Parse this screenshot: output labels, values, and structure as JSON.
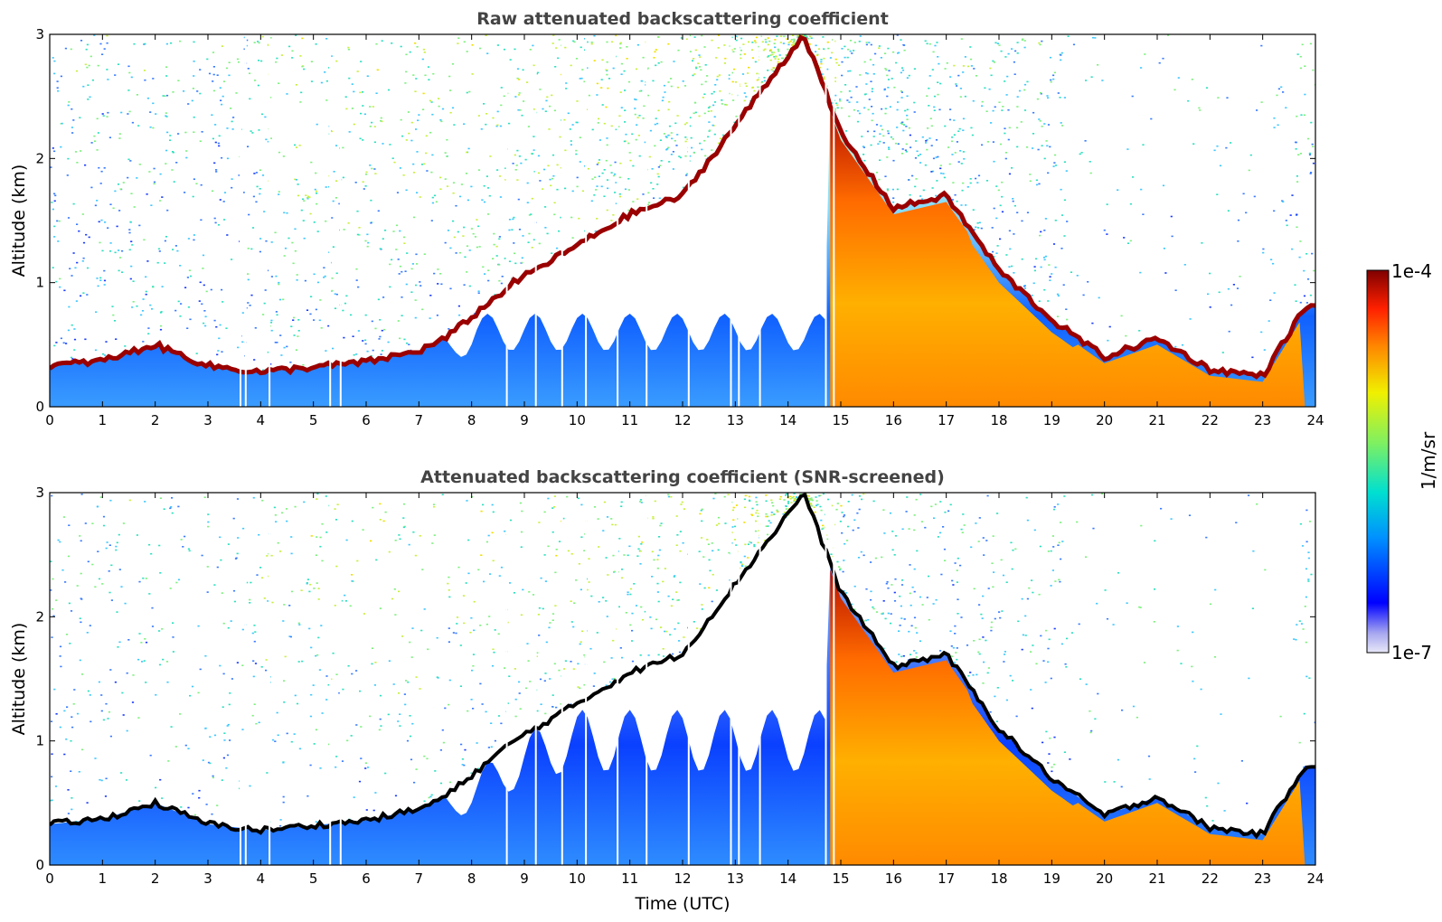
{
  "chart_data": [
    {
      "type": "heatmap",
      "title": "Raw attenuated backscattering coefficient",
      "xlabel": "",
      "ylabel": "Altitude (km)",
      "xlim": [
        0,
        24
      ],
      "ylim": [
        0,
        3
      ],
      "xticks": [
        "0",
        "1",
        "2",
        "3",
        "4",
        "5",
        "6",
        "7",
        "8",
        "9",
        "10",
        "11",
        "12",
        "13",
        "14",
        "15",
        "16",
        "17",
        "18",
        "19",
        "20",
        "21",
        "22",
        "23",
        "24"
      ],
      "yticks": [
        "0",
        "1",
        "2",
        "3"
      ],
      "layer_top_km": {
        "time": [
          0,
          1,
          2,
          3,
          4,
          5,
          6,
          7,
          7.5,
          8.8,
          10,
          11,
          12,
          14.3,
          15,
          16,
          17,
          18,
          19,
          20,
          21,
          22,
          23,
          23.8
        ],
        "altitude": [
          0.33,
          0.37,
          0.5,
          0.33,
          0.28,
          0.32,
          0.36,
          0.45,
          0.55,
          1.0,
          1.3,
          1.55,
          1.7,
          3.0,
          2.2,
          1.6,
          1.7,
          1.1,
          0.7,
          0.4,
          0.55,
          0.3,
          0.25,
          0.8
        ]
      },
      "grid": false
    },
    {
      "type": "heatmap",
      "title": "Attenuated backscattering coefficient (SNR-screened)",
      "xlabel": "Time (UTC)",
      "ylabel": "Altitude (km)",
      "xlim": [
        0,
        24
      ],
      "ylim": [
        0,
        3
      ],
      "xticks": [
        "0",
        "1",
        "2",
        "3",
        "4",
        "5",
        "6",
        "7",
        "8",
        "9",
        "10",
        "11",
        "12",
        "13",
        "14",
        "15",
        "16",
        "17",
        "18",
        "19",
        "20",
        "21",
        "22",
        "23",
        "24"
      ],
      "yticks": [
        "0",
        "1",
        "2",
        "3"
      ],
      "layer_top_km": {
        "time": [
          0,
          1,
          2,
          3,
          4,
          5,
          6,
          7,
          7.5,
          8.8,
          10,
          11,
          12,
          14.3,
          15,
          16,
          17,
          18,
          19,
          20,
          21,
          22,
          23,
          23.8
        ],
        "altitude": [
          0.33,
          0.37,
          0.5,
          0.33,
          0.28,
          0.32,
          0.36,
          0.45,
          0.55,
          1.0,
          1.3,
          1.55,
          1.7,
          3.0,
          2.2,
          1.6,
          1.7,
          1.1,
          0.7,
          0.4,
          0.55,
          0.3,
          0.25,
          0.8
        ]
      },
      "grid": false
    }
  ],
  "colorbar": {
    "label": "1/m/sr",
    "max_label": "1e-4",
    "min_label": "1e-7",
    "scale": "log",
    "colormap": [
      "#e8e8f8",
      "#0000ff",
      "#00c8ff",
      "#00e0a0",
      "#f0f000",
      "#ff8800",
      "#ff2000",
      "#800000"
    ]
  }
}
